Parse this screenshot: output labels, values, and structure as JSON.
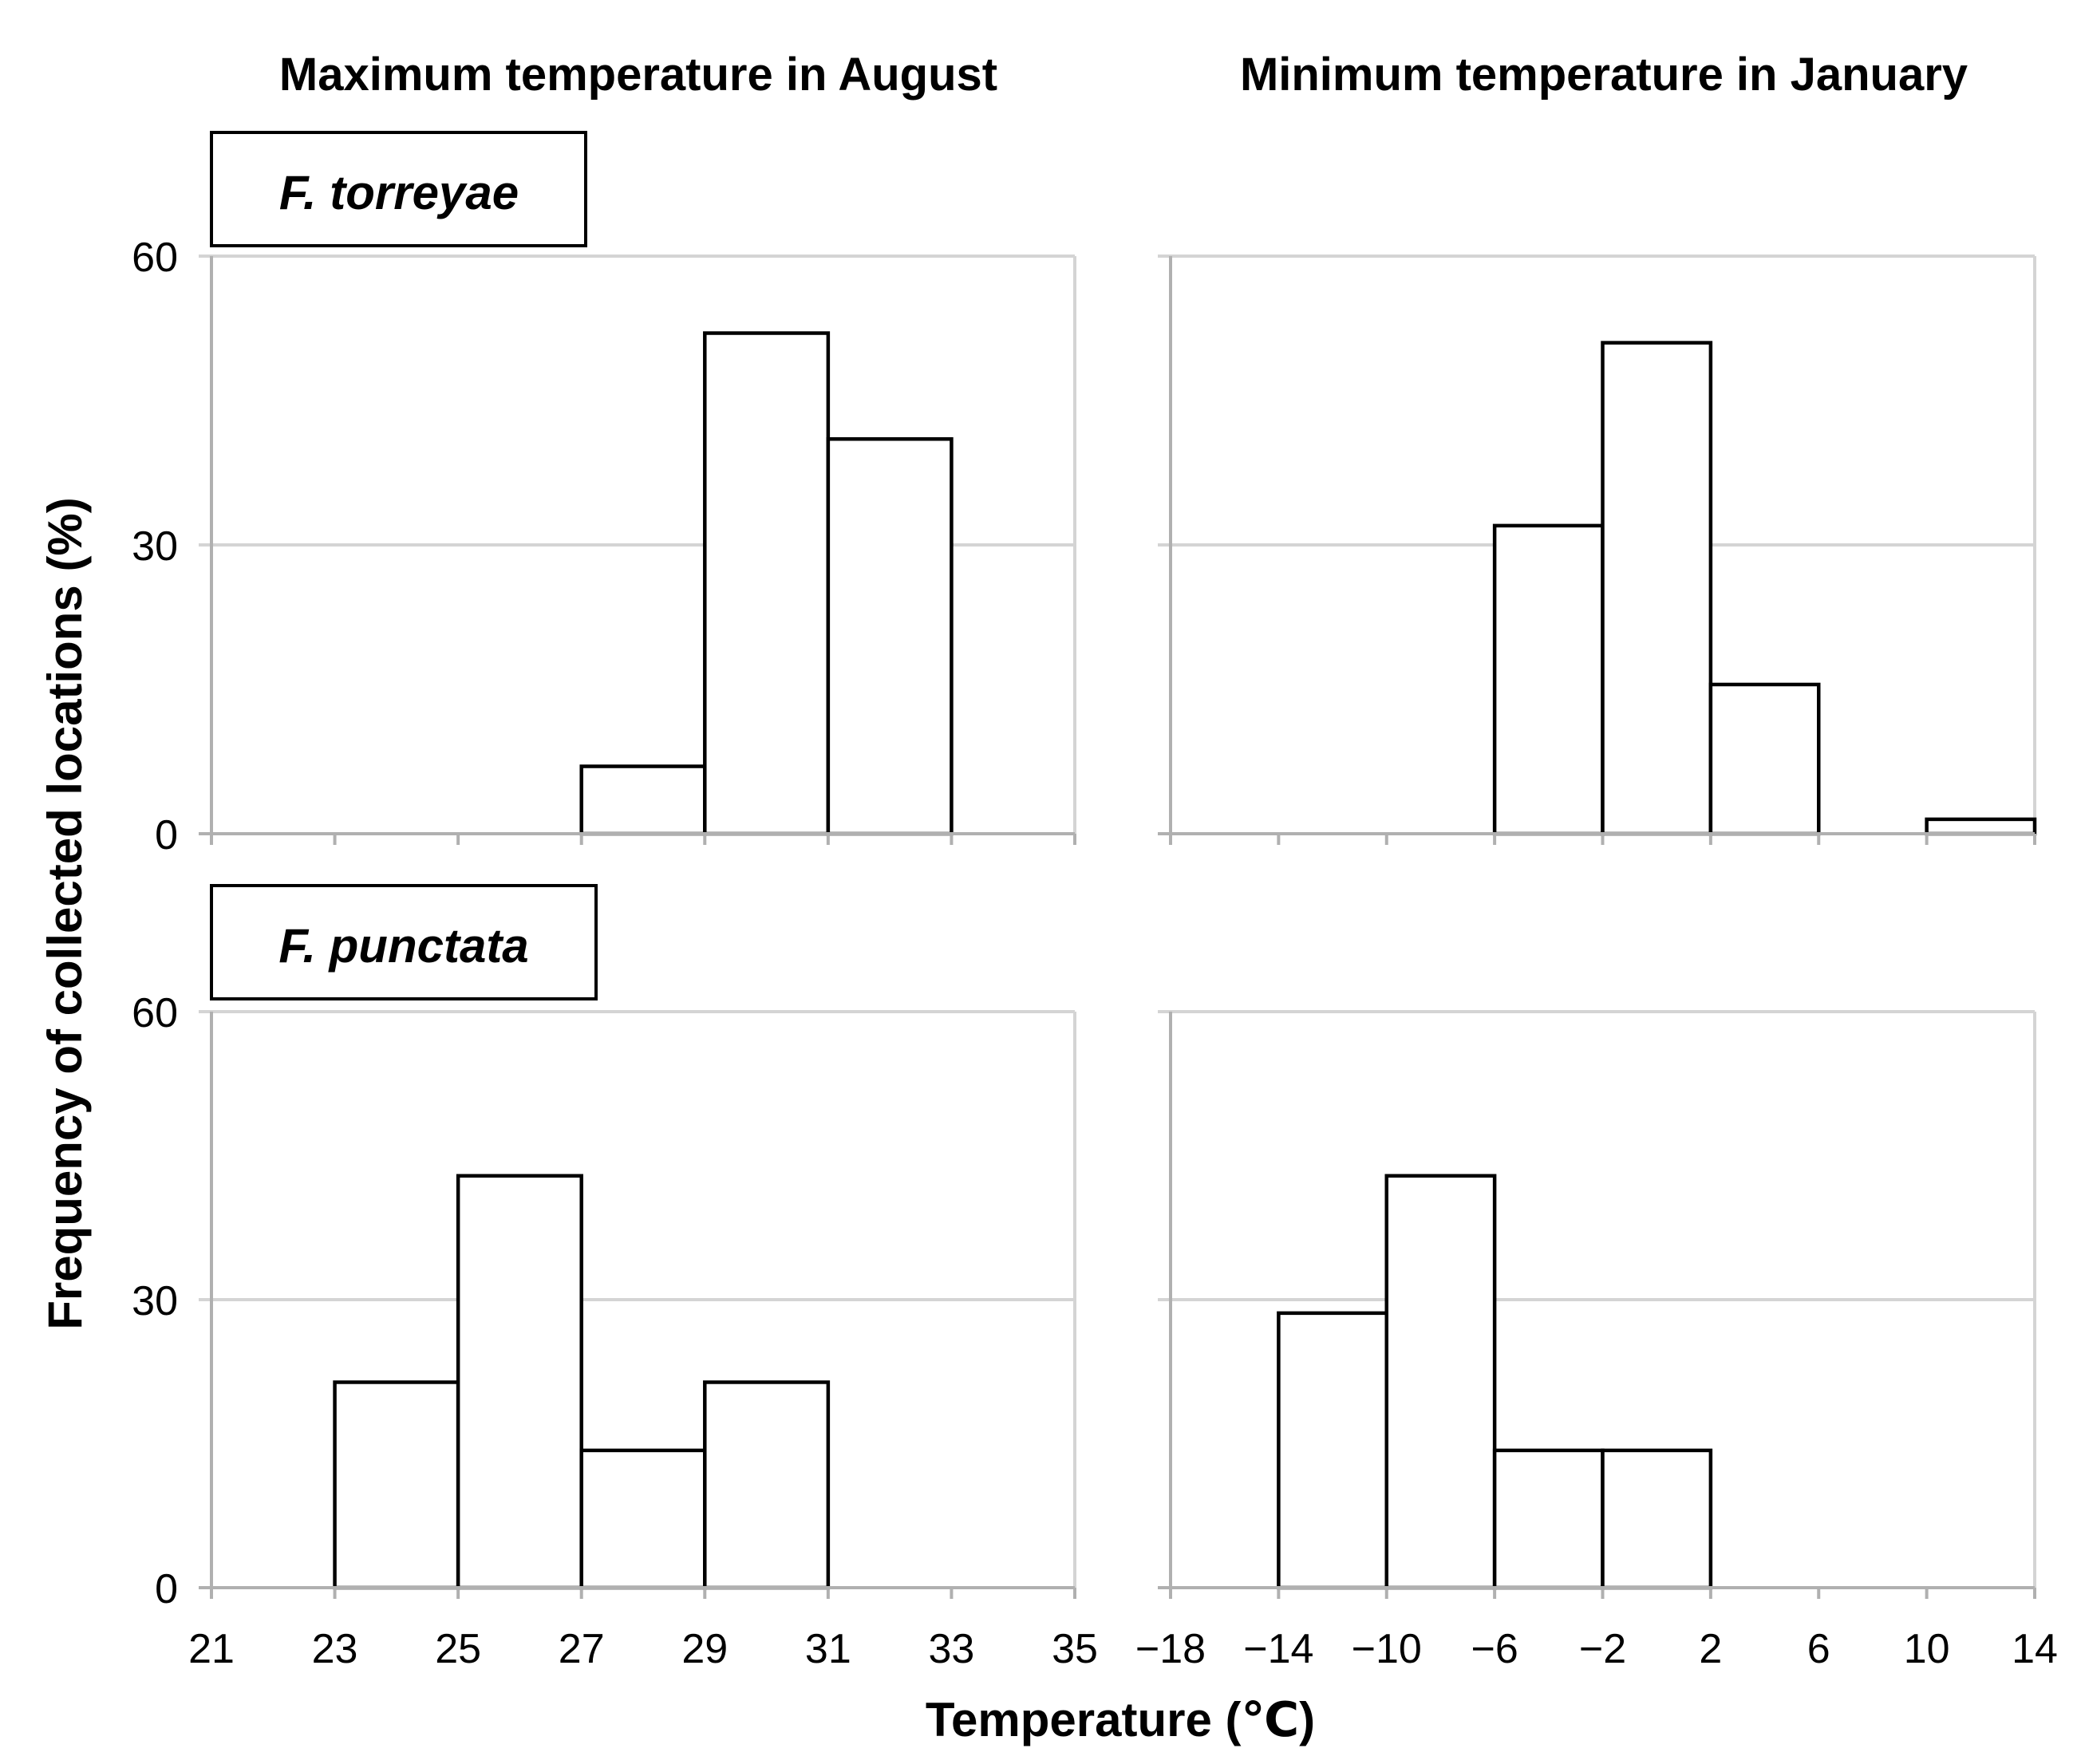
{
  "titles": {
    "left_column": "Maximum temperature in August",
    "right_column": "Minimum temperature in January",
    "species_top": "F. torreyae",
    "species_bottom": "F. punctata",
    "ylabel": "Frequency of collected locations (%)",
    "xlabel": "Temperature (℃)"
  },
  "chart_data": [
    {
      "type": "bar",
      "species": "F. torreyae",
      "title": "Maximum temperature in August",
      "xlabel": "Temperature (℃)",
      "ylabel": "Frequency of collected locations (%)",
      "x_ticks": [
        "21",
        "23",
        "25",
        "27",
        "29",
        "31",
        "33",
        "35"
      ],
      "y_ticks": [
        "0",
        "30",
        "60"
      ],
      "xlim": [
        21,
        35
      ],
      "ylim": [
        0,
        60
      ],
      "bins": [
        [
          27,
          29
        ],
        [
          29,
          31
        ],
        [
          31,
          33
        ]
      ],
      "values": [
        7,
        52,
        41
      ]
    },
    {
      "type": "bar",
      "species": "F. torreyae",
      "title": "Minimum temperature in January",
      "xlabel": "Temperature (℃)",
      "ylabel": "Frequency of collected locations (%)",
      "x_ticks": [
        "−18",
        "−14",
        "−10",
        "−6",
        "−2",
        "2",
        "6",
        "10",
        "14"
      ],
      "y_ticks": [
        "0",
        "30",
        "60"
      ],
      "xlim": [
        -18,
        14
      ],
      "ylim": [
        0,
        60
      ],
      "bins": [
        [
          -6,
          -2
        ],
        [
          -2,
          2
        ],
        [
          2,
          6
        ],
        [
          10,
          14
        ]
      ],
      "values": [
        32,
        51,
        15.5,
        1.5
      ]
    },
    {
      "type": "bar",
      "species": "F. punctata",
      "title": "Maximum temperature in August",
      "xlabel": "Temperature (℃)",
      "ylabel": "Frequency of collected locations (%)",
      "x_ticks": [
        "21",
        "23",
        "25",
        "27",
        "29",
        "31",
        "33",
        "35"
      ],
      "y_ticks": [
        "0",
        "30",
        "60"
      ],
      "xlim": [
        21,
        35
      ],
      "ylim": [
        0,
        60
      ],
      "bins": [
        [
          23,
          25
        ],
        [
          25,
          27
        ],
        [
          27,
          29
        ],
        [
          29,
          31
        ]
      ],
      "values": [
        21.4,
        42.9,
        14.3,
        21.4
      ]
    },
    {
      "type": "bar",
      "species": "F. punctata",
      "title": "Minimum temperature in January",
      "xlabel": "Temperature (℃)",
      "ylabel": "Frequency of collected locations (%)",
      "x_ticks": [
        "−18",
        "−14",
        "−10",
        "−6",
        "−2",
        "2",
        "6",
        "10",
        "14"
      ],
      "y_ticks": [
        "0",
        "30",
        "60"
      ],
      "xlim": [
        -18,
        14
      ],
      "ylim": [
        0,
        60
      ],
      "bins": [
        [
          -14,
          -10
        ],
        [
          -10,
          -6
        ],
        [
          -6,
          -2
        ],
        [
          -2,
          2
        ]
      ],
      "values": [
        28.6,
        42.9,
        14.3,
        14.3
      ]
    }
  ]
}
